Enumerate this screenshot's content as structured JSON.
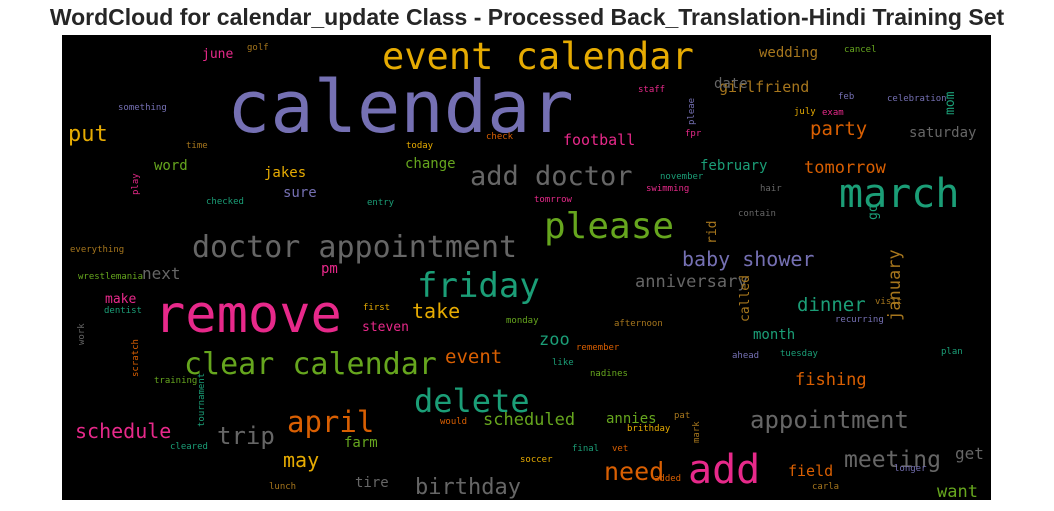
{
  "chart_data": {
    "type": "wordcloud",
    "title": "WordCloud for calendar_update Class - Processed Back_Translation-Hindi Training Set",
    "background": "#000000",
    "palette": [
      "#7570b3",
      "#e6ab02",
      "#1b9e77",
      "#66a61e",
      "#e7298a",
      "#d95f02",
      "#a6761d",
      "#666666"
    ],
    "words": [
      {
        "text": "calendar",
        "color": "#7570b3"
      },
      {
        "text": "event calendar",
        "color": "#e6ab02"
      },
      {
        "text": "remove",
        "color": "#e7298a"
      },
      {
        "text": "march",
        "color": "#1b9e77"
      },
      {
        "text": "please",
        "color": "#66a61e"
      },
      {
        "text": "add",
        "color": "#e7298a"
      },
      {
        "text": "doctor appointment",
        "color": "#666666"
      },
      {
        "text": "friday",
        "color": "#1b9e77"
      },
      {
        "text": "clear calendar",
        "color": "#66a61e"
      },
      {
        "text": "delete",
        "color": "#1b9e77"
      },
      {
        "text": "add doctor",
        "color": "#666666"
      },
      {
        "text": "april",
        "color": "#d95f02"
      },
      {
        "text": "appointment",
        "color": "#666666"
      },
      {
        "text": "trip",
        "color": "#666666"
      },
      {
        "text": "need",
        "color": "#d95f02"
      },
      {
        "text": "meeting",
        "color": "#666666"
      },
      {
        "text": "birthday",
        "color": "#666666"
      },
      {
        "text": "baby shower",
        "color": "#7570b3"
      },
      {
        "text": "put",
        "color": "#e6ab02"
      },
      {
        "text": "schedule",
        "color": "#e7298a"
      },
      {
        "text": "may",
        "color": "#e6ab02"
      },
      {
        "text": "party",
        "color": "#d95f02"
      },
      {
        "text": "take",
        "color": "#e6ab02"
      },
      {
        "text": "event",
        "color": "#d95f02"
      },
      {
        "text": "dinner",
        "color": "#1b9e77"
      },
      {
        "text": "anniversary",
        "color": "#666666"
      },
      {
        "text": "scheduled",
        "color": "#66a61e"
      },
      {
        "text": "fishing",
        "color": "#d95f02"
      },
      {
        "text": "tomorrow",
        "color": "#d95f02"
      },
      {
        "text": "january",
        "color": "#a6761d"
      },
      {
        "text": "zoo",
        "color": "#1b9e77"
      },
      {
        "text": "want",
        "color": "#66a61e"
      },
      {
        "text": "field",
        "color": "#d95f02"
      },
      {
        "text": "get",
        "color": "#666666"
      },
      {
        "text": "football",
        "color": "#e7298a"
      },
      {
        "text": "girlfriend",
        "color": "#a6761d"
      },
      {
        "text": "wedding",
        "color": "#a6761d"
      },
      {
        "text": "date",
        "color": "#666666"
      },
      {
        "text": "saturday",
        "color": "#666666"
      },
      {
        "text": "next",
        "color": "#666666"
      },
      {
        "text": "february",
        "color": "#1b9e77"
      },
      {
        "text": "change",
        "color": "#66a61e"
      },
      {
        "text": "jakes",
        "color": "#e6ab02"
      },
      {
        "text": "word",
        "color": "#66a61e"
      },
      {
        "text": "sure",
        "color": "#7570b3"
      },
      {
        "text": "pm",
        "color": "#e7298a"
      },
      {
        "text": "make",
        "color": "#e7298a"
      },
      {
        "text": "steven",
        "color": "#e7298a"
      },
      {
        "text": "month",
        "color": "#1b9e77"
      },
      {
        "text": "annies",
        "color": "#66a61e"
      },
      {
        "text": "farm",
        "color": "#66a61e"
      },
      {
        "text": "tire",
        "color": "#666666"
      },
      {
        "text": "june",
        "color": "#e7298a"
      },
      {
        "text": "mom",
        "color": "#1b9e77"
      },
      {
        "text": "go",
        "color": "#1b9e77"
      },
      {
        "text": "called",
        "color": "#a6761d"
      },
      {
        "text": "rid",
        "color": "#a6761d"
      },
      {
        "text": "golf",
        "color": "#a6761d"
      },
      {
        "text": "something",
        "color": "#7570b3"
      },
      {
        "text": "time",
        "color": "#a6761d"
      },
      {
        "text": "check",
        "color": "#d95f02"
      },
      {
        "text": "today",
        "color": "#e6ab02"
      },
      {
        "text": "staff",
        "color": "#e7298a"
      },
      {
        "text": "cancel",
        "color": "#66a61e"
      },
      {
        "text": "feb",
        "color": "#7570b3"
      },
      {
        "text": "celebration",
        "color": "#7570b3"
      },
      {
        "text": "july",
        "color": "#e6ab02"
      },
      {
        "text": "exam",
        "color": "#e7298a"
      },
      {
        "text": "pleae",
        "color": "#7570b3"
      },
      {
        "text": "fpr",
        "color": "#e7298a"
      },
      {
        "text": "play",
        "color": "#e7298a"
      },
      {
        "text": "checked",
        "color": "#1b9e77"
      },
      {
        "text": "entry",
        "color": "#1b9e77"
      },
      {
        "text": "november",
        "color": "#1b9e77"
      },
      {
        "text": "swimming",
        "color": "#e7298a"
      },
      {
        "text": "tomrrow",
        "color": "#e7298a"
      },
      {
        "text": "hair",
        "color": "#666666"
      },
      {
        "text": "contain",
        "color": "#666666"
      },
      {
        "text": "everything",
        "color": "#a6761d"
      },
      {
        "text": "wrestlemania",
        "color": "#66a61e"
      },
      {
        "text": "dentist",
        "color": "#1b9e77"
      },
      {
        "text": "work",
        "color": "#666666"
      },
      {
        "text": "first",
        "color": "#e6ab02"
      },
      {
        "text": "monday",
        "color": "#66a61e"
      },
      {
        "text": "afternoon",
        "color": "#a6761d"
      },
      {
        "text": "visit",
        "color": "#a6761d"
      },
      {
        "text": "recurring",
        "color": "#7570b3"
      },
      {
        "text": "scratch",
        "color": "#d95f02"
      },
      {
        "text": "training",
        "color": "#66a61e"
      },
      {
        "text": "tournament",
        "color": "#1b9e77"
      },
      {
        "text": "remember",
        "color": "#d95f02"
      },
      {
        "text": "like",
        "color": "#1b9e77"
      },
      {
        "text": "nadines",
        "color": "#66a61e"
      },
      {
        "text": "ahead",
        "color": "#7570b3"
      },
      {
        "text": "tuesday",
        "color": "#1b9e77"
      },
      {
        "text": "plan",
        "color": "#1b9e77"
      },
      {
        "text": "would",
        "color": "#d95f02"
      },
      {
        "text": "pat",
        "color": "#a6761d"
      },
      {
        "text": "brithday",
        "color": "#e6ab02"
      },
      {
        "text": "mark",
        "color": "#a6761d"
      },
      {
        "text": "cleared",
        "color": "#1b9e77"
      },
      {
        "text": "final",
        "color": "#1b9e77"
      },
      {
        "text": "vet",
        "color": "#d95f02"
      },
      {
        "text": "soccer",
        "color": "#e6ab02"
      },
      {
        "text": "added",
        "color": "#d95f02"
      },
      {
        "text": "lunch",
        "color": "#a6761d"
      },
      {
        "text": "carla",
        "color": "#a6761d"
      },
      {
        "text": "longer",
        "color": "#7570b3"
      }
    ]
  }
}
